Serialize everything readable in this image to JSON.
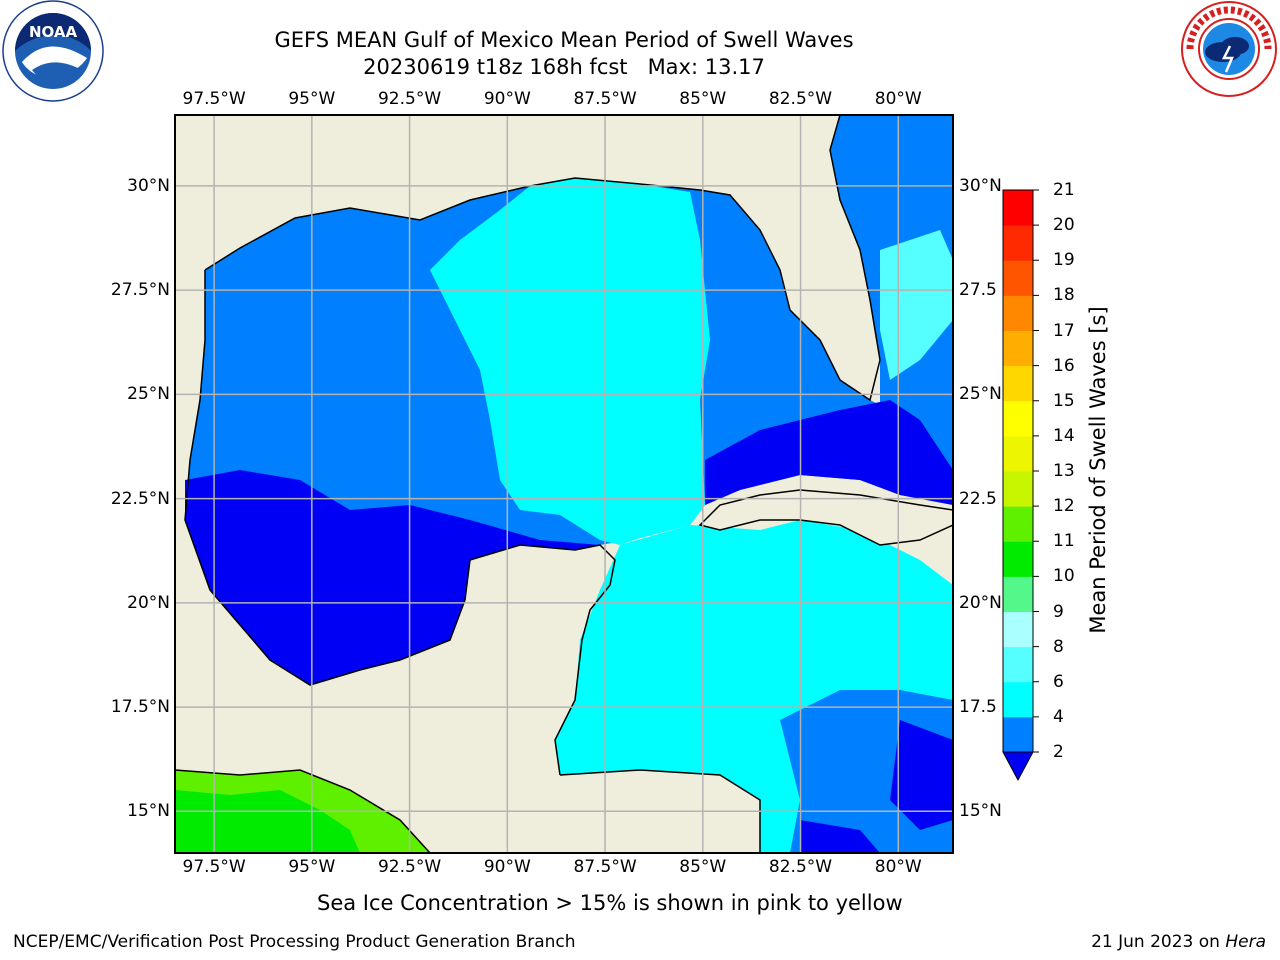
{
  "title": {
    "line1": "GEFS MEAN Gulf of Mexico Mean Period of Swell Waves",
    "line2": "20230619 t18z 168h fcst   Max: 13.17"
  },
  "map": {
    "lon_range": [
      -98.5,
      -78.6
    ],
    "lat_range": [
      14.0,
      31.7
    ],
    "lon_labels": [
      {
        "lon": -97.5,
        "label": "97.5°W"
      },
      {
        "lon": -95.0,
        "label": "95°W"
      },
      {
        "lon": -92.5,
        "label": "92.5°W"
      },
      {
        "lon": -90.0,
        "label": "90°W"
      },
      {
        "lon": -87.5,
        "label": "87.5°W"
      },
      {
        "lon": -85.0,
        "label": "85°W"
      },
      {
        "lon": -82.5,
        "label": "82.5°W"
      },
      {
        "lon": -80.0,
        "label": "80°W"
      }
    ],
    "lat_labels_left": [
      {
        "lat": 30.0,
        "label": "30°N"
      },
      {
        "lat": 27.5,
        "label": "27.5°N"
      },
      {
        "lat": 25.0,
        "label": "25°N"
      },
      {
        "lat": 22.5,
        "label": "22.5°N"
      },
      {
        "lat": 20.0,
        "label": "20°N"
      },
      {
        "lat": 17.5,
        "label": "17.5°N"
      },
      {
        "lat": 15.0,
        "label": "15°N"
      }
    ],
    "lat_labels_right": [
      {
        "lat": 30.0,
        "label": "30°N"
      },
      {
        "lat": 27.5,
        "label": "27.5"
      },
      {
        "lat": 25.0,
        "label": "25°N"
      },
      {
        "lat": 22.5,
        "label": "22.5"
      },
      {
        "lat": 20.0,
        "label": "20°N"
      },
      {
        "lat": 17.5,
        "label": "17.5"
      },
      {
        "lat": 15.0,
        "label": "15°N"
      }
    ],
    "colors": {
      "land": "#efeedc",
      "grid": "#b3b3b3",
      "coast": "#000000"
    }
  },
  "colorbar": {
    "label": "Mean Period of Swell Waves [s]",
    "ticks": [
      "2",
      "4",
      "6",
      "8",
      "9",
      "10",
      "11",
      "12",
      "13",
      "14",
      "15",
      "16",
      "17",
      "18",
      "19",
      "20",
      "21"
    ],
    "colors": [
      "#0000f5",
      "#0080ff",
      "#00ffff",
      "#55ffff",
      "#aaffff",
      "#54f78a",
      "#00eb00",
      "#5ff000",
      "#c8f500",
      "#eef500",
      "#ffff00",
      "#ffd700",
      "#ffae00",
      "#ff8800",
      "#ff5500",
      "#ff2a00",
      "#ff0000"
    ],
    "extend": "min",
    "below_color": "#0000f5"
  },
  "note": "Sea Ice Concentration > 15% is shown in pink to yellow",
  "footer": {
    "credit": "NCEP/EMC/Verification Post Processing Product Generation Branch",
    "date": "21 Jun 2023 on ",
    "host": "Hera"
  },
  "logos": {
    "left": "noaa-logo",
    "right": "nws-logo"
  }
}
